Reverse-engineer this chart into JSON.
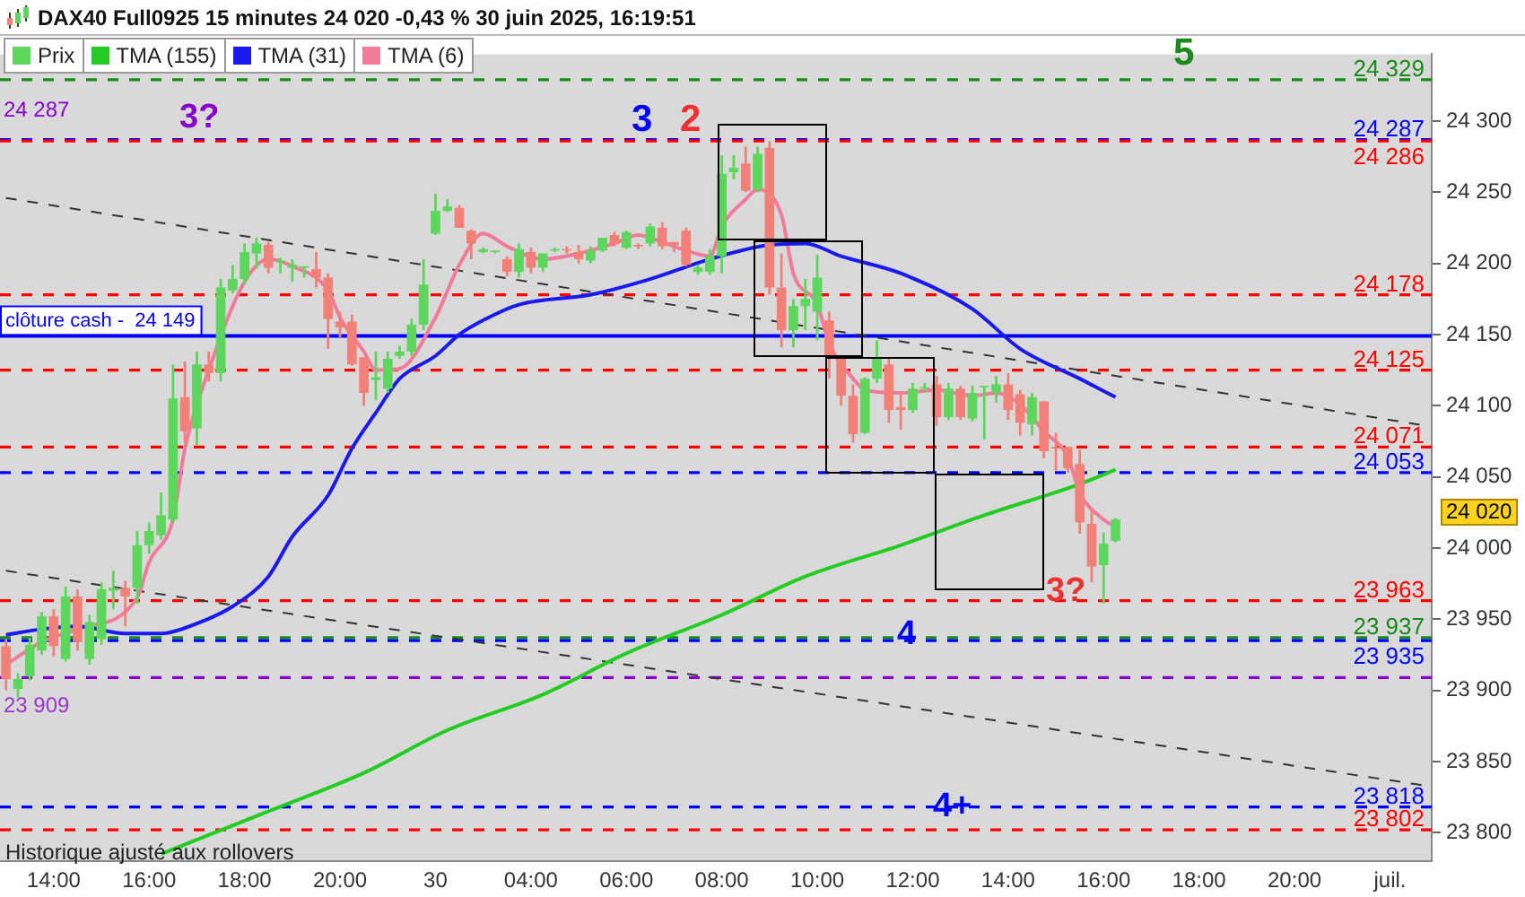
{
  "chart_data": {
    "type": "candlestick",
    "title": "DAX40 Full0925 15 minutes 24 020 -0,43 % 30 juin 2025, 16:19:51",
    "categories": [
      null,
      null,
      null,
      null,
      "14:00",
      null,
      null,
      null,
      null,
      null,
      null,
      null,
      "16:00",
      null,
      null,
      null,
      null,
      null,
      null,
      null,
      "18:00",
      null,
      null,
      null,
      null,
      null,
      null,
      null,
      "20:00",
      null,
      null,
      null,
      null,
      null,
      null,
      null,
      "30",
      null,
      null,
      null,
      null,
      null,
      null,
      null,
      "04:00",
      null,
      null,
      null,
      null,
      null,
      null,
      null,
      "06:00",
      null,
      null,
      null,
      null,
      null,
      null,
      null,
      "08:00",
      null,
      null,
      null,
      null,
      null,
      null,
      null,
      "10:00",
      null,
      null,
      null,
      null,
      null,
      null,
      null,
      "12:00",
      null,
      null,
      null,
      null,
      null,
      null,
      null,
      "14:00",
      null,
      null,
      null,
      null,
      null,
      null,
      null,
      "16:00",
      null,
      null,
      null,
      null,
      null,
      null,
      null,
      "18:00",
      null,
      null,
      null,
      null,
      null,
      null,
      null,
      "20:00",
      null,
      null,
      null,
      null,
      null,
      null,
      null,
      "juil.",
      null,
      null,
      null
    ],
    "series": [
      {
        "name": "Prix",
        "ohlc": [
          [
            23931,
            23936,
            23900,
            23908
          ],
          [
            23901,
            23912,
            23895,
            23908
          ],
          [
            23910,
            23937,
            23907,
            23932
          ],
          [
            23928,
            23955,
            23925,
            23952
          ],
          [
            23952,
            23957,
            23924,
            23931
          ],
          [
            23922,
            23973,
            23920,
            23966
          ],
          [
            23966,
            23971,
            23928,
            23934
          ],
          [
            23922,
            23953,
            23918,
            23948
          ],
          [
            23936,
            23976,
            23932,
            23971
          ],
          [
            23970,
            23984,
            23957,
            23972
          ],
          [
            23972,
            23977,
            23945,
            23966
          ],
          [
            23972,
            24012,
            23961,
            24002
          ],
          [
            24002,
            24018,
            23996,
            24012
          ],
          [
            24009,
            24039,
            24006,
            24023
          ],
          [
            24020,
            24129,
            24018,
            24105
          ],
          [
            24106,
            24131,
            24074,
            24082
          ],
          [
            24084,
            24138,
            24072,
            24129
          ],
          [
            24129,
            24138,
            24117,
            24123
          ],
          [
            24123,
            24189,
            24117,
            24183
          ],
          [
            24181,
            24199,
            24179,
            24189
          ],
          [
            24189,
            24214,
            24185,
            24208
          ],
          [
            24207,
            24218,
            24196,
            24214
          ],
          [
            24213,
            24215,
            24193,
            24197
          ],
          [
            24201,
            24204,
            24193,
            24202
          ],
          [
            24197,
            24203,
            24187,
            24199
          ],
          [
            24197,
            24198,
            24190,
            24198
          ],
          [
            24196,
            24208,
            24183,
            24190
          ],
          [
            24190,
            24193,
            24140,
            24161
          ],
          [
            24159,
            24166,
            24148,
            24155
          ],
          [
            24159,
            24164,
            24128,
            24129
          ],
          [
            24134,
            24134,
            24100,
            24109
          ],
          [
            24118,
            24138,
            24104,
            24120
          ],
          [
            24112,
            24138,
            24109,
            24133
          ],
          [
            24135,
            24142,
            24133,
            24138
          ],
          [
            24138,
            24161,
            24135,
            24157
          ],
          [
            24157,
            24203,
            24153,
            24185
          ],
          [
            24221,
            24249,
            24220,
            24237
          ],
          [
            24237,
            24245,
            24236,
            24240
          ],
          [
            24239,
            24241,
            24225,
            24225
          ],
          [
            24223,
            24224,
            24203,
            24214
          ],
          [
            24208,
            24211,
            24207,
            24210
          ],
          [
            24208,
            24209,
            24207,
            24209
          ],
          [
            24203,
            24205,
            24191,
            24194
          ],
          [
            24194,
            24214,
            24190,
            24210
          ],
          [
            24208,
            24211,
            24193,
            24197
          ],
          [
            24197,
            24207,
            24194,
            24207
          ],
          [
            24209,
            24211,
            24208,
            24210
          ],
          [
            24210,
            24212,
            24207,
            24209
          ],
          [
            24208,
            24213,
            24200,
            24203
          ],
          [
            24202,
            24212,
            24200,
            24209
          ],
          [
            24209,
            24218,
            24208,
            24218
          ],
          [
            24220,
            24222,
            24212,
            24214
          ],
          [
            24211,
            24223,
            24210,
            24222
          ],
          [
            24213,
            24214,
            24210,
            24212
          ],
          [
            24214,
            24228,
            24212,
            24226
          ],
          [
            24225,
            24229,
            24210,
            24212
          ],
          [
            24215,
            24215,
            24208,
            24213
          ],
          [
            24223,
            24225,
            24198,
            24199
          ],
          [
            24194,
            24199,
            24192,
            24197
          ],
          [
            24194,
            24210,
            24192,
            24205
          ],
          [
            24205,
            24276,
            24193,
            24263
          ],
          [
            24264,
            24276,
            24259,
            24267
          ],
          [
            24270,
            24282,
            24250,
            24251
          ],
          [
            24252,
            24282,
            24250,
            24277
          ],
          [
            24281,
            24286,
            24178,
            24183
          ],
          [
            24183,
            24207,
            24141,
            24153
          ],
          [
            24153,
            24175,
            24141,
            24170
          ],
          [
            24170,
            24189,
            24153,
            24175
          ],
          [
            24166,
            24206,
            24146,
            24190
          ],
          [
            24160,
            24166,
            24119,
            24135
          ],
          [
            24134,
            24135,
            24100,
            24107
          ],
          [
            24107,
            24115,
            24074,
            24080
          ],
          [
            24081,
            24120,
            24080,
            24119
          ],
          [
            24119,
            24146,
            24116,
            24133
          ],
          [
            24129,
            24134,
            24088,
            24097
          ],
          [
            24099,
            24109,
            24083,
            24097
          ],
          [
            24097,
            24116,
            24095,
            24112
          ],
          [
            24112,
            24116,
            24109,
            24113
          ],
          [
            24115,
            24121,
            24086,
            24092
          ],
          [
            24092,
            24116,
            24090,
            24112
          ],
          [
            24112,
            24114,
            24090,
            24092
          ],
          [
            24091,
            24114,
            24089,
            24109
          ],
          [
            24113,
            24114,
            24076,
            24114
          ],
          [
            24109,
            24121,
            24102,
            24115
          ],
          [
            24115,
            24123,
            24090,
            24097
          ],
          [
            24108,
            24111,
            24079,
            24088
          ],
          [
            24087,
            24109,
            24079,
            24106
          ],
          [
            24103,
            24103,
            24063,
            24068
          ],
          [
            24071,
            24081,
            24054,
            24070
          ],
          [
            24071,
            24071,
            24053,
            24056
          ],
          [
            24059,
            24069,
            24010,
            24018
          ],
          [
            24017,
            24028,
            23976,
            23987
          ],
          [
            23988,
            24011,
            23961,
            24003
          ],
          [
            24005,
            24021,
            24004,
            24020
          ],
          null,
          null,
          null,
          null,
          null,
          null,
          null,
          null,
          null,
          null,
          null,
          null,
          null,
          null,
          null,
          null,
          null,
          null,
          null,
          null,
          null,
          null,
          null,
          null,
          null,
          null
        ]
      },
      {
        "name": "TMA (155)",
        "type": "line",
        "color": "#22cc22",
        "values": [
          null,
          null,
          null,
          null,
          null,
          null,
          null,
          null,
          null,
          null,
          null,
          null,
          null,
          23785,
          null,
          null,
          null,
          null,
          null,
          null,
          null,
          null,
          23815,
          null,
          null,
          null,
          null,
          null,
          null,
          null,
          23842,
          null,
          null,
          null,
          null,
          null,
          null,
          23872,
          null,
          null,
          null,
          null,
          null,
          null,
          null,
          23897,
          null,
          null,
          null,
          null,
          null,
          null,
          23926,
          null,
          null,
          null,
          null,
          null,
          null,
          null,
          23953,
          null,
          null,
          null,
          null,
          null,
          null,
          23980,
          null,
          null,
          null,
          null,
          null,
          null,
          null,
          24002,
          null,
          null,
          null,
          null,
          null,
          null,
          24023,
          null,
          null,
          null,
          null,
          null,
          null,
          null,
          24045,
          null,
          null,
          24055,
          null,
          null,
          null,
          null,
          null,
          null,
          null,
          null,
          null,
          null,
          null,
          null,
          null,
          null,
          null,
          null,
          null,
          null,
          null,
          null,
          null,
          null,
          null,
          null,
          null,
          null
        ]
      },
      {
        "name": "TMA (31)",
        "type": "line",
        "color": "#1a1aee",
        "values": [
          23939,
          null,
          null,
          23943,
          null,
          null,
          23945,
          null,
          null,
          null,
          23940,
          null,
          null,
          23940,
          null,
          null,
          23947,
          null,
          null,
          23959,
          null,
          null,
          23980,
          null,
          24008,
          null,
          null,
          24037,
          null,
          24070,
          null,
          24095,
          null,
          24119,
          null,
          null,
          24135,
          null,
          24150,
          null,
          24160,
          null,
          null,
          24171,
          null,
          null,
          null,
          null,
          null,
          24178,
          null,
          null,
          null,
          null,
          24189,
          null,
          null,
          null,
          null,
          24203,
          null,
          null,
          null,
          null,
          24213,
          null,
          null,
          24214,
          null,
          null,
          24205,
          null,
          null,
          null,
          null,
          24193,
          null,
          null,
          null,
          null,
          null,
          24168,
          null,
          null,
          null,
          24140,
          null,
          null,
          null,
          null,
          24119,
          null,
          null,
          24106,
          null,
          null,
          null,
          null,
          null,
          null,
          null,
          null,
          null,
          null,
          null,
          null,
          null,
          null,
          null,
          null,
          null,
          null,
          null,
          null,
          null,
          null,
          null,
          null,
          null,
          null
        ]
      },
      {
        "name": "TMA (6)",
        "type": "line",
        "color": "#f27a9a",
        "values": [
          23918,
          null,
          null,
          23934,
          null,
          null,
          23943,
          null,
          null,
          null,
          null,
          23965,
          23990,
          null,
          24020,
          24070,
          null,
          24125,
          null,
          null,
          24187,
          null,
          24203,
          null,
          24198,
          null,
          null,
          24181,
          24162,
          null,
          24138,
          24125,
          null,
          24126,
          null,
          null,
          24162,
          null,
          24199,
          null,
          24221,
          null,
          24212,
          null,
          null,
          24203,
          null,
          null,
          24207,
          null,
          null,
          24214,
          null,
          24220,
          24218,
          null,
          null,
          24209,
          null,
          24205,
          24226,
          null,
          24245,
          24252,
          null,
          24234,
          24193,
          null,
          24171,
          24144,
          null,
          24119,
          24111,
          null,
          null,
          24109,
          null,
          null,
          24111,
          null,
          null,
          24107,
          null,
          24109,
          null,
          24101,
          null,
          24082,
          null,
          24064,
          24039,
          null,
          24020,
          24015,
          null,
          null,
          null,
          null,
          null,
          null,
          null,
          null,
          null,
          null,
          null,
          null,
          null,
          null,
          null,
          null,
          null,
          null,
          null,
          null,
          null,
          null,
          null,
          null,
          null,
          null
        ]
      },
      {
        "type": "line",
        "color": "#333333",
        "line_style": "dashed",
        "values": [
          24246,
          null,
          null,
          null,
          null,
          null,
          null,
          null,
          null,
          null,
          null,
          null,
          null,
          null,
          null,
          null,
          null,
          null,
          null,
          null,
          null,
          null,
          null,
          null,
          null,
          null,
          null,
          null,
          null,
          null,
          null,
          null,
          null,
          null,
          null,
          null,
          null,
          null,
          null,
          null,
          null,
          null,
          null,
          null,
          null,
          null,
          null,
          null,
          null,
          null,
          null,
          null,
          null,
          null,
          null,
          null,
          null,
          null,
          null,
          null,
          null,
          null,
          null,
          null,
          null,
          null,
          null,
          null,
          null,
          null,
          null,
          null,
          null,
          null,
          null,
          null,
          null,
          null,
          null,
          null,
          null,
          null,
          null,
          null,
          null,
          null,
          null,
          null,
          null,
          null,
          null,
          null,
          null,
          null,
          null,
          null,
          null,
          null,
          null,
          null,
          null,
          null,
          null,
          null,
          null,
          null,
          null,
          null,
          null,
          null,
          null,
          null,
          null,
          null,
          null,
          null,
          null,
          null,
          null,
          24086
        ]
      },
      {
        "type": "line",
        "color": "#333333",
        "line_style": "dashed",
        "values": [
          23984,
          null,
          null,
          null,
          null,
          null,
          null,
          null,
          null,
          null,
          null,
          null,
          null,
          null,
          null,
          null,
          null,
          null,
          null,
          null,
          null,
          null,
          null,
          null,
          null,
          null,
          null,
          null,
          null,
          null,
          null,
          null,
          null,
          null,
          null,
          null,
          null,
          null,
          null,
          null,
          null,
          null,
          null,
          null,
          null,
          null,
          null,
          null,
          null,
          null,
          null,
          null,
          null,
          null,
          null,
          null,
          null,
          null,
          null,
          null,
          null,
          null,
          null,
          null,
          null,
          null,
          null,
          null,
          null,
          null,
          null,
          null,
          null,
          null,
          null,
          null,
          null,
          null,
          null,
          null,
          null,
          null,
          null,
          null,
          null,
          null,
          null,
          null,
          null,
          null,
          null,
          null,
          null,
          null,
          null,
          null,
          null,
          null,
          null,
          null,
          null,
          null,
          null,
          null,
          null,
          null,
          null,
          null,
          null,
          null,
          null,
          null,
          null,
          null,
          null,
          null,
          null,
          null,
          null,
          23833
        ]
      }
    ],
    "ylim": [
      23780,
      24347
    ],
    "yticks": [
      {
        "value": 23800,
        "label": "23 800"
      },
      {
        "value": 23850,
        "label": "23 850"
      },
      {
        "value": 23900,
        "label": "23 900"
      },
      {
        "value": 23950,
        "label": "23 950"
      },
      {
        "value": 24000,
        "label": "24 000"
      },
      {
        "value": 24050,
        "label": "24 050"
      },
      {
        "value": 24100,
        "label": "24 100"
      },
      {
        "value": 24150,
        "label": "24 150"
      },
      {
        "value": 24200,
        "label": "24 200"
      },
      {
        "value": 24250,
        "label": "24 250"
      },
      {
        "value": 24300,
        "label": "24 300"
      }
    ],
    "ref_lines": [
      {
        "axis": "y",
        "value": 24329,
        "label": "24 329",
        "color": "#1a8a1a",
        "line_style": "dashed"
      },
      {
        "axis": "y",
        "value": 24287,
        "label": "24 287",
        "color": "#0000ff",
        "line_style": "dashed"
      },
      {
        "axis": "y",
        "value": 24286,
        "label": "24 286",
        "color": "#ff0000",
        "line_style": "dashed"
      },
      {
        "axis": "y",
        "value": 24178,
        "label": "24 178",
        "color": "#ff0000",
        "line_style": "dashed"
      },
      {
        "axis": "y",
        "value": 24149,
        "label": "clôture cash -  24 149",
        "color": "#0000ff",
        "line_style": "solid"
      },
      {
        "axis": "y",
        "value": 24125,
        "label": "24 125",
        "color": "#ff0000",
        "line_style": "dashed"
      },
      {
        "axis": "y",
        "value": 24071,
        "label": "24 071",
        "color": "#ff0000",
        "line_style": "dashed"
      },
      {
        "axis": "y",
        "value": 24053,
        "label": "24 053",
        "color": "#0000ff",
        "line_style": "dashed"
      },
      {
        "axis": "y",
        "value": 23963,
        "label": "23 963",
        "color": "#ff0000",
        "line_style": "dashed"
      },
      {
        "axis": "y",
        "value": 23937,
        "label": "23 937",
        "color": "#1a8a1a",
        "line_style": "dashed"
      },
      {
        "axis": "y",
        "value": 23935,
        "label": "23 935",
        "color": "#0000ff",
        "line_style": "dashed"
      },
      {
        "axis": "y",
        "value": 23909,
        "color": "#8800cc",
        "line_style": "dashed"
      },
      {
        "axis": "y",
        "value": 23818,
        "label": "23 818",
        "color": "#0000ff",
        "line_style": "dashed"
      },
      {
        "axis": "y",
        "value": 23802,
        "label": "23 802",
        "color": "#ff0000",
        "line_style": "dashed"
      }
    ],
    "annotations": [
      "5",
      "3?",
      "3",
      "2",
      "4",
      "4+",
      "3?",
      "24 287",
      "23 909",
      "Historique ajusté aux rollovers",
      "24 020"
    ],
    "legend": "top left"
  }
}
